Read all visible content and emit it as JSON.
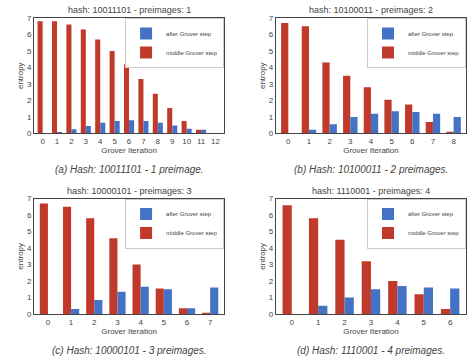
{
  "chart_data": [
    {
      "type": "bar",
      "title": "hash: 10011101 - preimages: 1",
      "annotations": [
        "(a) Hash: 10011101 - 1 preimage."
      ],
      "xlabel": "Grover Iteration",
      "ylabel": "entropy",
      "x": [
        0,
        1,
        2,
        3,
        4,
        5,
        6,
        7,
        8,
        9,
        10,
        11,
        12
      ],
      "series": [
        {
          "name": "middle Grover step",
          "color": "#c0392b",
          "values": [
            6.8,
            6.8,
            6.6,
            6.3,
            5.7,
            5.0,
            4.2,
            3.3,
            2.4,
            1.55,
            0.75,
            0.22,
            0.0
          ]
        },
        {
          "name": "after Grover step",
          "color": "#4472c4",
          "values": [
            0.0,
            0.08,
            0.25,
            0.45,
            0.65,
            0.75,
            0.8,
            0.75,
            0.65,
            0.48,
            0.28,
            0.22,
            0.0
          ]
        }
      ],
      "xlim": [
        -0.6,
        12.6
      ],
      "xticks": [
        0,
        1,
        2,
        3,
        4,
        5,
        6,
        7,
        8,
        9,
        10,
        11,
        12
      ],
      "ylim": [
        0,
        7
      ],
      "yticks": [
        0,
        1,
        2,
        3,
        4,
        5,
        6,
        7
      ],
      "grid": false,
      "legend": "upper right"
    },
    {
      "type": "bar",
      "title": "hash: 10100011 - preimages: 2",
      "annotations": [
        "(b) Hash: 10100011 - 2 preimages."
      ],
      "xlabel": "Grover Iteration",
      "ylabel": "entropy",
      "x": [
        0,
        1,
        2,
        3,
        4,
        5,
        6,
        7,
        8
      ],
      "series": [
        {
          "name": "middle Grover step",
          "color": "#c0392b",
          "values": [
            6.7,
            6.5,
            4.3,
            3.5,
            2.8,
            2.05,
            1.75,
            0.7,
            0.1
          ]
        },
        {
          "name": "after Grover step",
          "color": "#4472c4",
          "values": [
            0.0,
            0.22,
            0.55,
            1.0,
            1.2,
            1.35,
            1.3,
            1.2,
            1.0
          ]
        }
      ],
      "xlim": [
        -0.6,
        8.6
      ],
      "xticks": [
        0,
        1,
        2,
        3,
        4,
        5,
        6,
        7,
        8
      ],
      "ylim": [
        0,
        7
      ],
      "yticks": [
        0,
        1,
        2,
        3,
        4,
        5,
        6,
        7
      ],
      "grid": false,
      "legend": "upper right"
    },
    {
      "type": "bar",
      "title": "hash: 10000101 - preimages: 3",
      "annotations": [
        "(c) Hash: 10000101 - 3 preimages."
      ],
      "xlabel": "Grover Iteration",
      "ylabel": "entropy",
      "x": [
        0,
        1,
        2,
        3,
        4,
        5,
        6,
        7
      ],
      "series": [
        {
          "name": "middle Grover step",
          "color": "#c0392b",
          "values": [
            6.7,
            6.5,
            5.8,
            4.6,
            3.0,
            1.55,
            0.35,
            0.08
          ]
        },
        {
          "name": "after Grover step",
          "color": "#4472c4",
          "values": [
            0.0,
            0.3,
            0.85,
            1.35,
            1.65,
            1.5,
            0.35,
            1.6
          ]
        }
      ],
      "xlim": [
        -0.6,
        7.6
      ],
      "xticks": [
        0,
        1,
        2,
        3,
        4,
        5,
        6,
        7
      ],
      "ylim": [
        0,
        7
      ],
      "yticks": [
        0,
        1,
        2,
        3,
        4,
        5,
        6,
        7
      ],
      "grid": false,
      "legend": "upper right"
    },
    {
      "type": "bar",
      "title": "hash: 1110001 - preimages: 4",
      "annotations": [
        "(d) Hash: 1110001 - 4 preimages."
      ],
      "xlabel": "Grover Iteration",
      "ylabel": "entropy",
      "x": [
        0,
        1,
        2,
        3,
        4,
        5,
        6
      ],
      "series": [
        {
          "name": "middle Grover step",
          "color": "#c0392b",
          "values": [
            6.6,
            5.8,
            4.5,
            3.2,
            2.0,
            1.2,
            0.3
          ]
        },
        {
          "name": "after Grover step",
          "color": "#4472c4",
          "values": [
            0.0,
            0.5,
            1.0,
            1.5,
            1.7,
            1.6,
            1.55
          ]
        }
      ],
      "xlim": [
        -0.6,
        6.6
      ],
      "xticks": [
        0,
        1,
        2,
        3,
        4,
        5,
        6
      ],
      "ylim": [
        0,
        7
      ],
      "yticks": [
        0,
        1,
        2,
        3,
        4,
        5,
        6,
        7
      ],
      "grid": false,
      "legend": "upper right"
    }
  ]
}
